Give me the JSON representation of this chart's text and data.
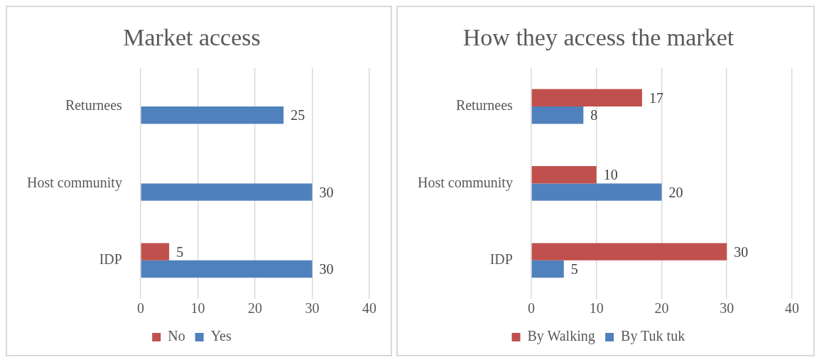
{
  "chart_data": [
    {
      "type": "bar",
      "title": "Market access",
      "orientation": "horizontal",
      "categories": [
        "Returnees",
        "Host community",
        "IDP"
      ],
      "series": [
        {
          "name": "No",
          "color": "#c0504d",
          "values": [
            null,
            null,
            5
          ]
        },
        {
          "name": "Yes",
          "color": "#4f81bd",
          "values": [
            25,
            30,
            30
          ]
        }
      ],
      "xlim": [
        0,
        40
      ],
      "xticks": [
        0,
        10,
        20,
        30,
        40
      ],
      "grid": "x",
      "legend": "bottom",
      "data_labels": true
    },
    {
      "type": "bar",
      "title": "How they access the market",
      "orientation": "horizontal",
      "categories": [
        "Returnees",
        "Host community",
        "IDP"
      ],
      "series": [
        {
          "name": "By Walking",
          "color": "#c0504d",
          "values": [
            17,
            10,
            30
          ]
        },
        {
          "name": "By Tuk tuk",
          "color": "#4f81bd",
          "values": [
            8,
            20,
            5
          ]
        }
      ],
      "xlim": [
        0,
        40
      ],
      "xticks": [
        0,
        10,
        20,
        30,
        40
      ],
      "grid": "x",
      "legend": "bottom",
      "data_labels": true
    }
  ]
}
